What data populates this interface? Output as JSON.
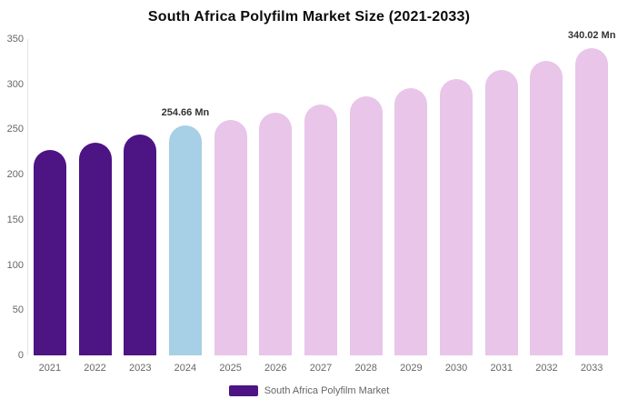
{
  "chart_data": {
    "type": "bar",
    "title": "South Africa Polyfilm Market Size (2021-2033)",
    "categories": [
      "2021",
      "2022",
      "2023",
      "2024",
      "2025",
      "2026",
      "2027",
      "2028",
      "2029",
      "2030",
      "2031",
      "2032",
      "2033"
    ],
    "values": [
      227,
      235,
      244,
      254.66,
      261,
      269,
      278,
      287,
      296,
      306,
      316,
      326,
      340.02
    ],
    "bar_colors": [
      "#4d1484",
      "#4d1484",
      "#4d1484",
      "#a7cfe5",
      "#e8c5e9",
      "#e8c5e9",
      "#e8c5e9",
      "#e8c5e9",
      "#e8c5e9",
      "#e8c5e9",
      "#e8c5e9",
      "#e8c5e9",
      "#e8c5e9"
    ],
    "xlabel": "",
    "ylabel": "",
    "ylim": [
      0,
      350
    ],
    "yticks": [
      0,
      50,
      100,
      150,
      200,
      250,
      300,
      350
    ],
    "grid": false,
    "legend_position": "bottom",
    "data_labels": [
      {
        "index": 3,
        "text": "254.66 Mn"
      },
      {
        "index": 12,
        "text": "340.02 Mn"
      }
    ],
    "legend": {
      "label": "South Africa Polyfilm Market",
      "swatch_color": "#4d1484"
    }
  },
  "colors": {
    "historical_bar": "#4d1484",
    "highlight_bar": "#a7cfe5",
    "forecast_bar": "#e8c5e9",
    "axis_text": "#666666",
    "title_text": "#0d0d0d"
  }
}
